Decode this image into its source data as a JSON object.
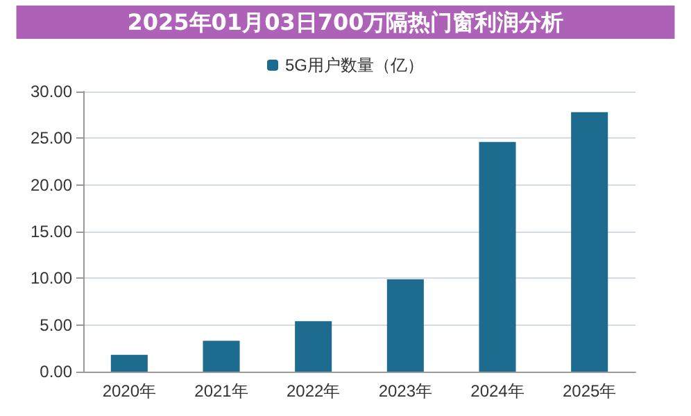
{
  "chart_data": {
    "type": "bar",
    "title": "2025年01月03日700万隔热门窗利润分析",
    "categories": [
      "2020年",
      "2021年",
      "2022年",
      "2023年",
      "2024年",
      "2025年"
    ],
    "series": [
      {
        "name": "5G用户数量（亿）",
        "color": "#1d6b8e",
        "values": [
          1.8,
          3.3,
          5.4,
          9.9,
          24.6,
          27.8
        ]
      }
    ],
    "ylim": [
      0,
      30
    ],
    "yticks": [
      {
        "value": 0,
        "label": "0.00"
      },
      {
        "value": 5,
        "label": "5.00"
      },
      {
        "value": 10,
        "label": "10.00"
      },
      {
        "value": 15,
        "label": "15.00"
      },
      {
        "value": 20,
        "label": "20.00"
      },
      {
        "value": 25,
        "label": "25.00"
      },
      {
        "value": 30,
        "label": "30.00"
      }
    ],
    "grid": "y",
    "legend": "top"
  }
}
